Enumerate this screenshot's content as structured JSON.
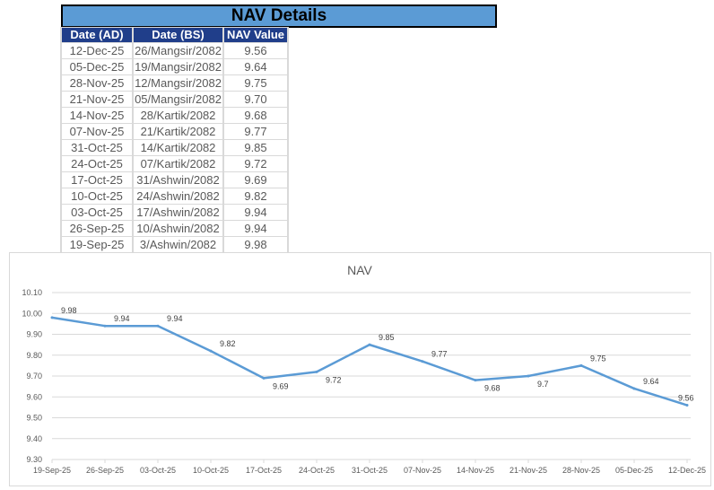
{
  "table": {
    "title": "NAV Details",
    "headers": [
      "Date (AD)",
      "Date (BS)",
      "NAV Value"
    ],
    "rows": [
      [
        "12-Dec-25",
        "26/Mangsir/2082",
        "9.56"
      ],
      [
        "05-Dec-25",
        "19/Mangsir/2082",
        "9.64"
      ],
      [
        "28-Nov-25",
        "12/Mangsir/2082",
        "9.75"
      ],
      [
        "21-Nov-25",
        "05/Mangsir/2082",
        "9.70"
      ],
      [
        "14-Nov-25",
        "28/Kartik/2082",
        "9.68"
      ],
      [
        "07-Nov-25",
        "21/Kartik/2082",
        "9.77"
      ],
      [
        "31-Oct-25",
        "14/Kartik/2082",
        "9.85"
      ],
      [
        "24-Oct-25",
        "07/Kartik/2082",
        "9.72"
      ],
      [
        "17-Oct-25",
        "31/Ashwin/2082",
        "9.69"
      ],
      [
        "10-Oct-25",
        "24/Ashwin/2082",
        "9.82"
      ],
      [
        "03-Oct-25",
        "17/Ashwin/2082",
        "9.94"
      ],
      [
        "26-Sep-25",
        "10/Ashwin/2082",
        "9.94"
      ],
      [
        "19-Sep-25",
        "3/Ashwin/2082",
        "9.98"
      ]
    ]
  },
  "chart_data": {
    "type": "line",
    "title": "NAV",
    "categories": [
      "19-Sep-25",
      "26-Sep-25",
      "03-Oct-25",
      "10-Oct-25",
      "17-Oct-25",
      "24-Oct-25",
      "31-Oct-25",
      "07-Nov-25",
      "14-Nov-25",
      "21-Nov-25",
      "28-Nov-25",
      "05-Dec-25",
      "12-Dec-25"
    ],
    "values": [
      9.98,
      9.94,
      9.94,
      9.82,
      9.69,
      9.72,
      9.85,
      9.77,
      9.68,
      9.7,
      9.75,
      9.64,
      9.56
    ],
    "data_labels": [
      "9.98",
      "9.94",
      "9.94",
      "9.82",
      "9.69",
      "9.72",
      "9.85",
      "9.77",
      "9.68",
      "9.7",
      "9.75",
      "9.64",
      "9.56"
    ],
    "ylim": [
      9.3,
      10.1
    ],
    "yticks": [
      "9.30",
      "9.40",
      "9.50",
      "9.60",
      "9.70",
      "9.80",
      "9.90",
      "10.00",
      "10.10"
    ],
    "grid": true,
    "line_color": "#5b9bd5"
  }
}
